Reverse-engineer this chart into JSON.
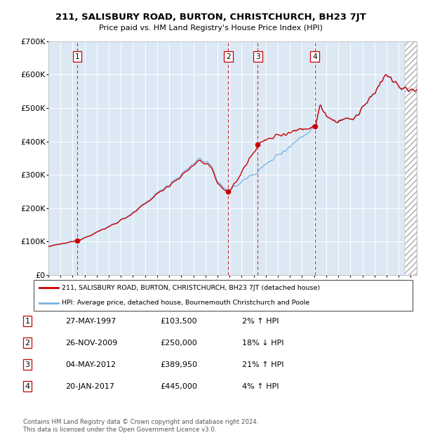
{
  "title": "211, SALISBURY ROAD, BURTON, CHRISTCHURCH, BH23 7JT",
  "subtitle": "Price paid vs. HM Land Registry's House Price Index (HPI)",
  "background_color": "#dce9f5",
  "plot_bg_color": "#dce9f5",
  "sale_year_nums": [
    1997.375,
    2009.896,
    2012.336,
    2017.055
  ],
  "sale_prices": [
    103500,
    250000,
    389950,
    445000
  ],
  "sale_labels": [
    "1",
    "2",
    "3",
    "4"
  ],
  "legend_line1": "211, SALISBURY ROAD, BURTON, CHRISTCHURCH, BH23 7JT (detached house)",
  "legend_line2": "HPI: Average price, detached house, Bournemouth Christchurch and Poole",
  "table_rows": [
    [
      "1",
      "27-MAY-1997",
      "£103,500",
      "2% ↑ HPI"
    ],
    [
      "2",
      "26-NOV-2009",
      "£250,000",
      "18% ↓ HPI"
    ],
    [
      "3",
      "04-MAY-2012",
      "£389,950",
      "21% ↑ HPI"
    ],
    [
      "4",
      "20-JAN-2017",
      "£445,000",
      "4% ↑ HPI"
    ]
  ],
  "footer": "Contains HM Land Registry data © Crown copyright and database right 2024.\nThis data is licensed under the Open Government Licence v3.0.",
  "hpi_line_color": "#7ab3e0",
  "price_line_color": "#cc0000",
  "sale_marker_color": "#cc0000",
  "dashed_line_color": "#cc0000",
  "ylim": [
    0,
    700000
  ],
  "yticks": [
    0,
    100000,
    200000,
    300000,
    400000,
    500000,
    600000,
    700000
  ],
  "ytick_labels": [
    "£0",
    "£100K",
    "£200K",
    "£300K",
    "£400K",
    "£500K",
    "£600K",
    "£700K"
  ],
  "xlim_start": 1995.0,
  "xlim_end": 2025.5,
  "hatched_region_start": 2024.5,
  "hatched_region_end": 2025.5
}
